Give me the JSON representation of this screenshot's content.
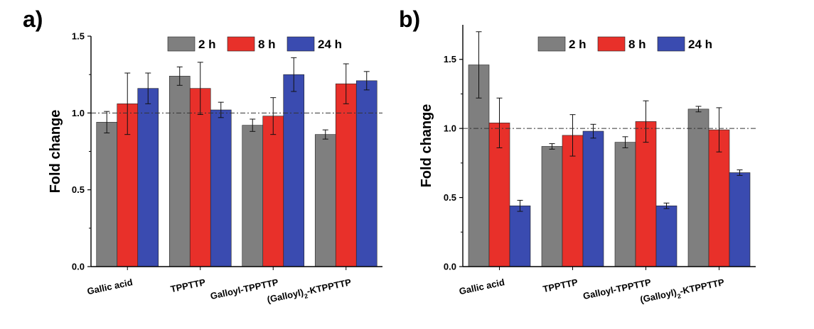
{
  "figure": {
    "panels": [
      {
        "letter": "a)"
      },
      {
        "letter": "b)"
      }
    ]
  },
  "legend": {
    "items": [
      {
        "label": "2 h",
        "color": "#7f7f7f"
      },
      {
        "label": "8 h",
        "color": "#e8302a"
      },
      {
        "label": "24 h",
        "color": "#3a4bb0"
      }
    ]
  },
  "colors": {
    "series_2h": "#7f7f7f",
    "series_8h": "#e8302a",
    "series_24h": "#3a4bb0",
    "reference_line": "#333333",
    "axis": "#000000"
  },
  "chart_data": [
    {
      "type": "bar",
      "panel": "a)",
      "title": "",
      "xlabel": "",
      "ylabel": "Fold change",
      "ylim": [
        0,
        1.5
      ],
      "yticks": [
        "0.0",
        "0.5",
        "1.0",
        "1.5"
      ],
      "categories": [
        "Gallic acid",
        "TPPTTP",
        "Galloyl-TPPTTP",
        "(Galloyl)2-KTPPTTP"
      ],
      "series": [
        {
          "name": "2 h",
          "values": [
            0.94,
            1.24,
            0.92,
            0.86
          ],
          "errors": [
            0.07,
            0.06,
            0.04,
            0.03
          ]
        },
        {
          "name": "8 h",
          "values": [
            1.06,
            1.16,
            0.98,
            1.19
          ],
          "errors": [
            0.2,
            0.17,
            0.12,
            0.13
          ]
        },
        {
          "name": "24 h",
          "values": [
            1.16,
            1.02,
            1.25,
            1.21
          ],
          "errors": [
            0.1,
            0.05,
            0.11,
            0.06
          ]
        }
      ],
      "reference_line": 1.0,
      "legend_position": "top-center",
      "grid": false
    },
    {
      "type": "bar",
      "panel": "b)",
      "title": "",
      "xlabel": "",
      "ylabel": "Fold change",
      "ylim": [
        0,
        1.75
      ],
      "yticks": [
        "0.0",
        "0.5",
        "1.0",
        "1.5"
      ],
      "categories": [
        "Gallic acid",
        "TPPTTP",
        "Galloyl-TPPTTP",
        "(Galloyl)2-KTPPTTP"
      ],
      "series": [
        {
          "name": "2 h",
          "values": [
            1.46,
            0.87,
            0.9,
            1.14
          ],
          "errors": [
            0.24,
            0.02,
            0.04,
            0.02
          ]
        },
        {
          "name": "8 h",
          "values": [
            1.04,
            0.95,
            1.05,
            0.99
          ],
          "errors": [
            0.18,
            0.15,
            0.15,
            0.16
          ]
        },
        {
          "name": "24 h",
          "values": [
            0.44,
            0.98,
            0.44,
            0.68
          ],
          "errors": [
            0.04,
            0.05,
            0.02,
            0.02
          ]
        }
      ],
      "reference_line": 1.0,
      "legend_position": "top-center",
      "grid": false
    }
  ]
}
